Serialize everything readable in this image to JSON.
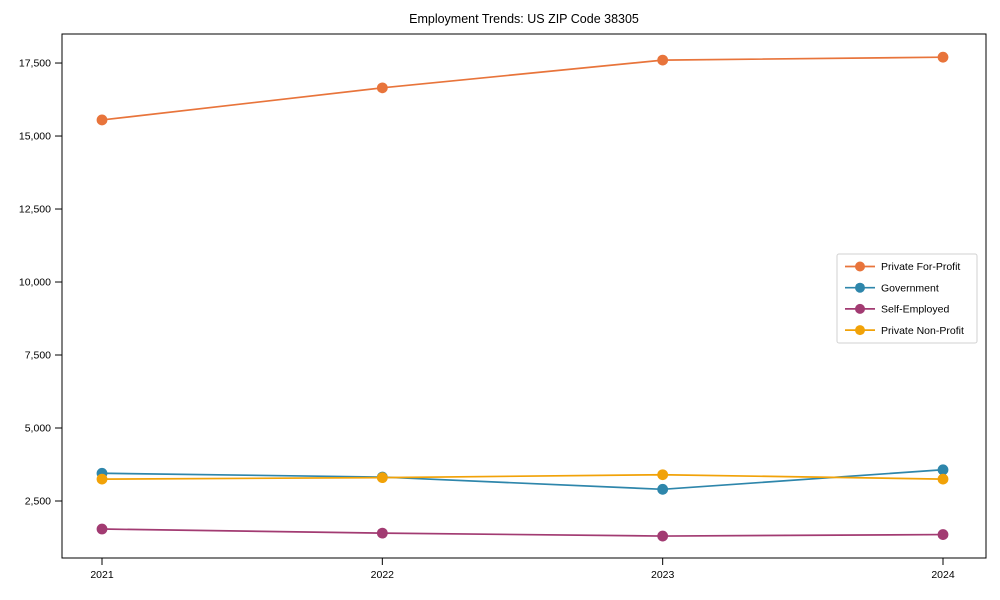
{
  "figure": {
    "title": "Employment Trends: US ZIP Code 38305"
  },
  "chart_data": {
    "type": "line",
    "title": "Employment Trends: US ZIP Code 38305",
    "xlabel": "",
    "ylabel": "",
    "x": [
      "2021",
      "2022",
      "2023",
      "2024"
    ],
    "series": [
      {
        "name": "Private For-Profit",
        "color": "#E8743B",
        "values": [
          15550,
          16650,
          17600,
          17700
        ]
      },
      {
        "name": "Government",
        "color": "#2E86AB",
        "values": [
          3450,
          3320,
          2900,
          3570
        ]
      },
      {
        "name": "Self-Employed",
        "color": "#A23B72",
        "values": [
          1540,
          1400,
          1300,
          1350
        ]
      },
      {
        "name": "Private Non-Profit",
        "color": "#F1A208",
        "values": [
          3250,
          3300,
          3400,
          3250
        ]
      }
    ],
    "yticks": [
      2500,
      5000,
      7500,
      10000,
      12500,
      15000,
      17500
    ],
    "ylim": [
      548,
      18494
    ],
    "grid": false,
    "legend_position": "center-right",
    "marker": "circle",
    "axis_color": "#000000",
    "legend_border_color": "#d2d2d2",
    "legend_background": "#ffffff"
  }
}
